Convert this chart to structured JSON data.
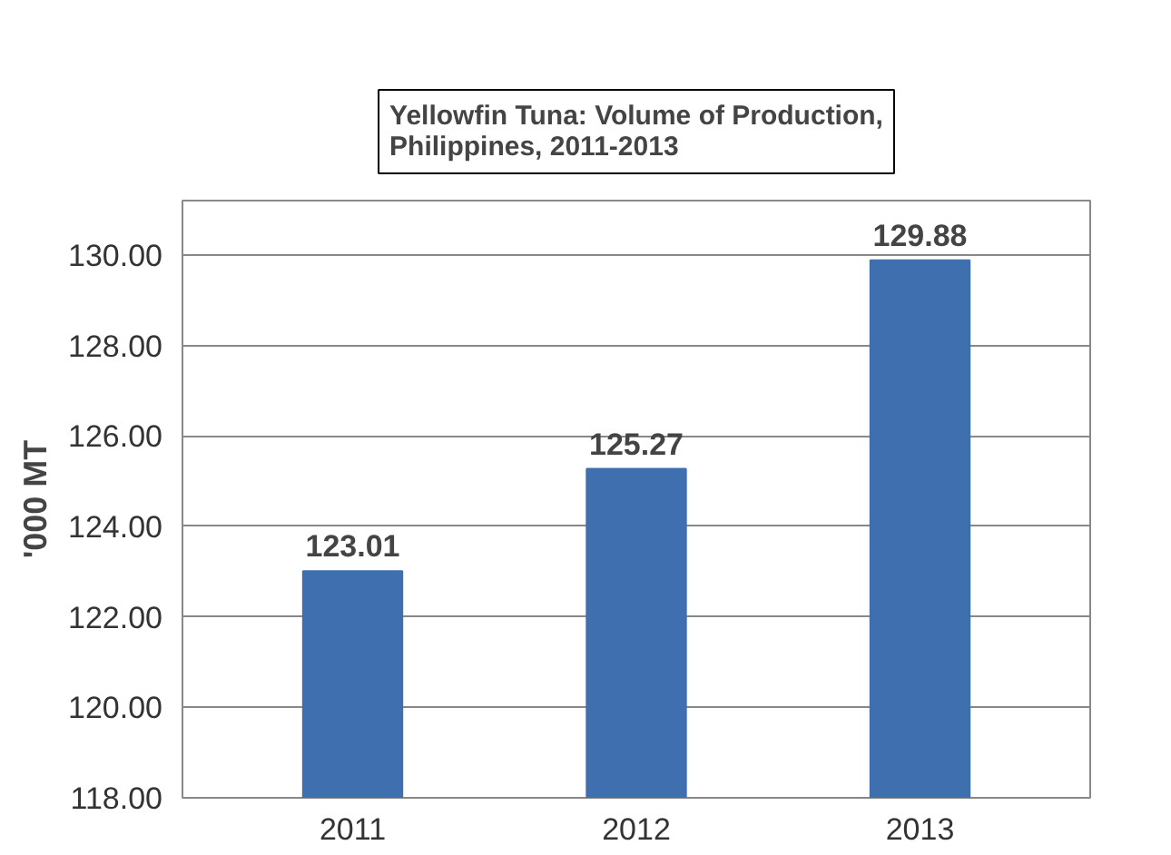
{
  "chart_data": {
    "type": "bar",
    "title": "Yellowfin Tuna: Volume of Production,\nPhilippines, 2011-2013",
    "ylabel": "'000 MT",
    "categories": [
      "2011",
      "2012",
      "2013"
    ],
    "values": [
      123.01,
      125.27,
      129.88
    ],
    "color": "#3f6faf",
    "value_labels": [
      "123.01",
      "125.27",
      "129.88"
    ],
    "ylim": [
      118,
      131.2
    ],
    "yticks": [
      {
        "value": 118,
        "label": "118.00"
      },
      {
        "value": 120,
        "label": "120.00"
      },
      {
        "value": 122,
        "label": "122.00"
      },
      {
        "value": 124,
        "label": "124.00"
      },
      {
        "value": 126,
        "label": "126.00"
      },
      {
        "value": 128,
        "label": "128.00"
      },
      {
        "value": 130,
        "label": "130.00"
      }
    ],
    "grid": "y"
  }
}
